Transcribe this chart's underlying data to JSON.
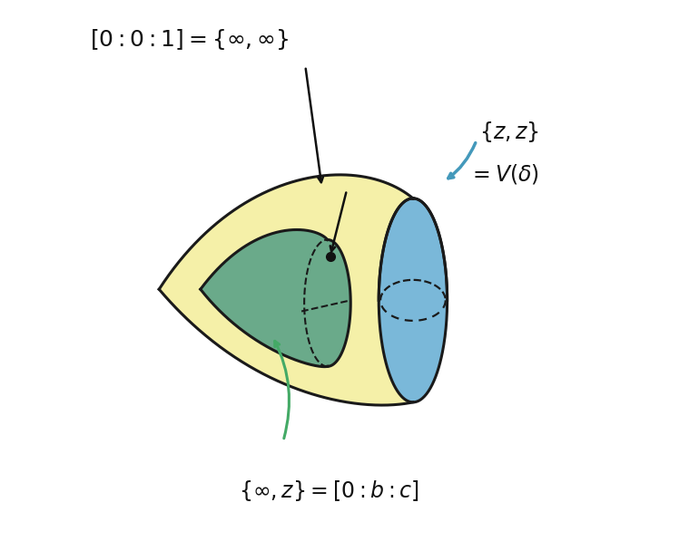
{
  "bg_color": "#ffffff",
  "yellow_color": "#f5f0a8",
  "yellow_edge": "#1a1a1a",
  "blue_color": "#7ab8d9",
  "blue_edge": "#1a1a1a",
  "green_color": "#6aaa8a",
  "green_edge": "#1a1a1a",
  "arrow_color_black": "#1a1a1a",
  "arrow_color_blue": "#4499bb",
  "arrow_color_green": "#44aa66"
}
